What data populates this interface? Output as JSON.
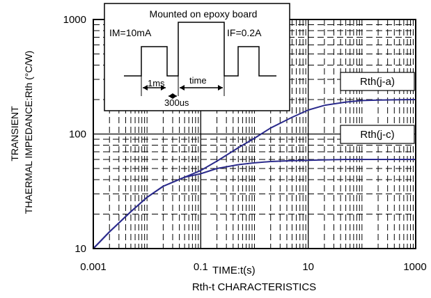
{
  "chart_data": {
    "type": "line",
    "title": "Rth-t CHARACTERISTICS",
    "xlabel": "TIME:t(s)",
    "ylabel_lines": [
      "TRANSIENT",
      "THAERMAL IMPEDANCE:Rth (°C/W)"
    ],
    "x_scale": "log",
    "y_scale": "log",
    "xlim": [
      0.001,
      1000
    ],
    "ylim": [
      10,
      1000
    ],
    "x_tick_labels": [
      "0.001",
      "0.1",
      "10",
      "1000"
    ],
    "y_tick_labels": [
      "10",
      "100",
      "1000"
    ],
    "grid": true,
    "x": [
      0.001,
      0.002,
      0.005,
      0.01,
      0.02,
      0.05,
      0.1,
      0.2,
      0.5,
      1,
      2,
      5,
      10,
      20,
      50,
      100,
      200,
      500,
      1000
    ],
    "series": [
      {
        "name": "Rth(j-a)",
        "color": "#2b2b8c",
        "values": [
          10,
          14,
          21,
          28,
          35,
          42,
          48,
          58,
          76,
          92,
          113,
          140,
          162,
          178,
          190,
          196,
          198,
          199,
          200
        ]
      },
      {
        "name": "Rth(j-c)",
        "color": "#2b2b8c",
        "values": [
          10,
          14,
          21,
          28,
          35,
          42,
          45,
          50,
          54,
          56,
          57.5,
          58.5,
          59,
          59.5,
          60,
          60,
          60,
          60,
          60
        ]
      }
    ],
    "inset": {
      "title": "Mounted on epoxy board",
      "im_label": "IM=10mA",
      "if_label": "IF=0.2A",
      "pulse_label": "1ms",
      "time_label": "time",
      "period_label": "300us"
    }
  }
}
